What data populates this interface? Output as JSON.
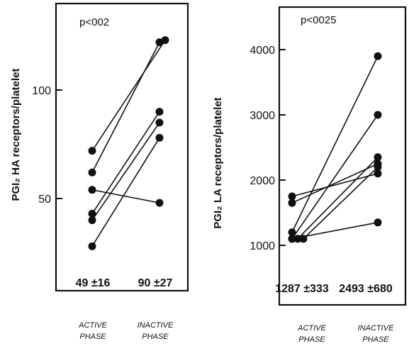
{
  "chart_data": [
    {
      "type": "scatter",
      "pvalue": "p<002",
      "ylabel": "PGI₂ HA receptors/platelet",
      "ylim": [
        0,
        140
      ],
      "yticks": [
        {
          "v": 50,
          "label": "50"
        },
        {
          "v": 100,
          "label": "100"
        }
      ],
      "categories": [
        "ACTIVE PHASE",
        "INACTIVE PHASE"
      ],
      "pairs": [
        [
          72,
          123
        ],
        [
          62,
          122
        ],
        [
          54,
          48
        ],
        [
          43,
          90
        ],
        [
          40,
          85
        ],
        [
          28,
          78
        ]
      ],
      "summary": [
        "49 ±16",
        "90 ±27"
      ]
    },
    {
      "type": "scatter",
      "pvalue": "p<0025",
      "ylabel": "PGI₂ LA receptors/platelet",
      "ylim": [
        0,
        4500
      ],
      "yticks": [
        {
          "v": 1000,
          "label": "1000"
        },
        {
          "v": 2000,
          "label": "2000"
        },
        {
          "v": 3000,
          "label": "3000"
        },
        {
          "v": 4000,
          "label": "4000"
        }
      ],
      "categories": [
        "ACTIVE PHASE",
        "INACTIVE PHASE"
      ],
      "pairs": [
        [
          1750,
          2100
        ],
        [
          1650,
          2250
        ],
        [
          1200,
          3900
        ],
        [
          1100,
          3000
        ],
        [
          1100,
          2350
        ],
        [
          1100,
          2200
        ],
        [
          1100,
          1350
        ]
      ],
      "summary": [
        "1287 ±333",
        "2493 ±680"
      ]
    }
  ]
}
